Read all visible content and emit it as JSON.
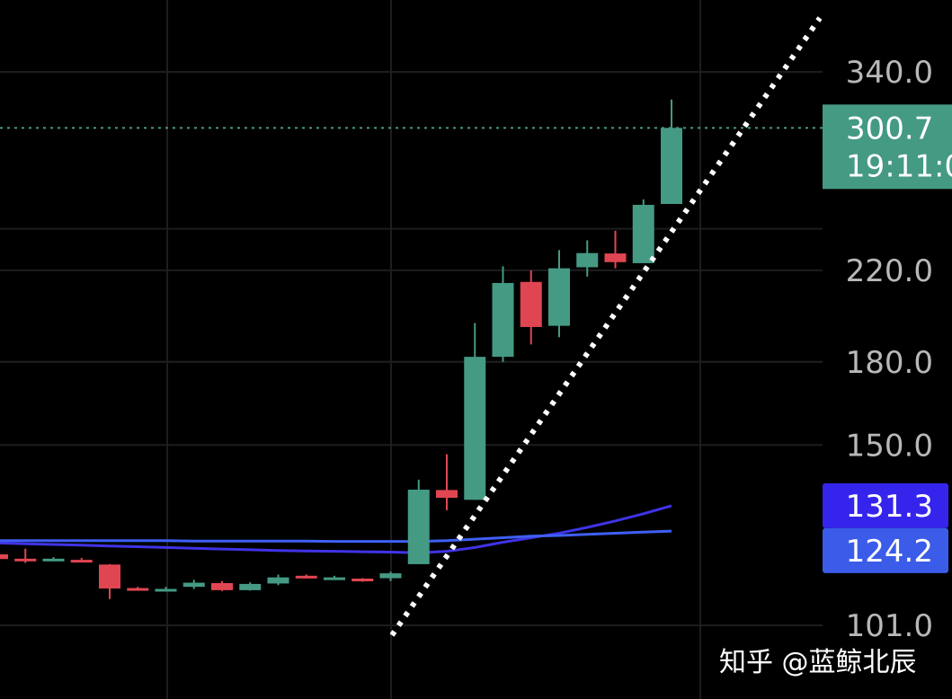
{
  "chart_data": {
    "type": "candlestick",
    "y_axis": {
      "scale": "log",
      "ticks": [
        "340.0",
        "220.0",
        "180.0",
        "150.0",
        "101.0"
      ]
    },
    "grid": true,
    "candles": [
      {
        "open": 118.0,
        "high": 119.5,
        "low": 116.5,
        "close": 116.8
      },
      {
        "open": 116.9,
        "high": 119.5,
        "low": 115.8,
        "close": 116.5
      },
      {
        "open": 116.7,
        "high": 117.3,
        "low": 116.2,
        "close": 116.9
      },
      {
        "open": 116.6,
        "high": 117.1,
        "low": 116.1,
        "close": 116.4
      },
      {
        "open": 115.4,
        "high": 115.5,
        "low": 107.0,
        "close": 109.5
      },
      {
        "open": 109.6,
        "high": 109.9,
        "low": 109.0,
        "close": 109.2
      },
      {
        "open": 109.1,
        "high": 109.9,
        "low": 108.8,
        "close": 109.4
      },
      {
        "open": 109.9,
        "high": 111.6,
        "low": 109.4,
        "close": 110.9
      },
      {
        "open": 110.8,
        "high": 111.3,
        "low": 108.9,
        "close": 109.1
      },
      {
        "open": 109.1,
        "high": 111.0,
        "low": 109.0,
        "close": 110.6
      },
      {
        "open": 110.7,
        "high": 112.9,
        "low": 110.3,
        "close": 112.2
      },
      {
        "open": 112.6,
        "high": 112.9,
        "low": 111.9,
        "close": 112.1
      },
      {
        "open": 112.0,
        "high": 112.6,
        "low": 111.6,
        "close": 112.2
      },
      {
        "open": 111.9,
        "high": 112.0,
        "low": 111.1,
        "close": 111.7
      },
      {
        "open": 112.0,
        "high": 113.6,
        "low": 111.3,
        "close": 113.2
      },
      {
        "open": 115.5,
        "high": 139.0,
        "low": 115.5,
        "close": 136.0
      },
      {
        "open": 135.9,
        "high": 147.0,
        "low": 130.0,
        "close": 133.6
      },
      {
        "open": 133.0,
        "high": 196.0,
        "low": 133.0,
        "close": 182.0
      },
      {
        "open": 182.0,
        "high": 222.0,
        "low": 180.0,
        "close": 214.0
      },
      {
        "open": 214.5,
        "high": 220.0,
        "low": 187.0,
        "close": 194.3
      },
      {
        "open": 194.8,
        "high": 230.0,
        "low": 190.0,
        "close": 221.0
      },
      {
        "open": 221.5,
        "high": 235.0,
        "low": 217.0,
        "close": 228.5
      },
      {
        "open": 228.3,
        "high": 240.0,
        "low": 221.0,
        "close": 224.0
      },
      {
        "open": 223.5,
        "high": 257.0,
        "low": 223.5,
        "close": 254.0
      },
      {
        "open": 254.5,
        "high": 320.0,
        "low": 254.5,
        "close": 300.7
      }
    ],
    "moving_averages": [
      {
        "color": "#3f33e6",
        "values": [
          121.0,
          120.8,
          120.6,
          120.4,
          120.2,
          120.0,
          119.8,
          119.6,
          119.4,
          119.2,
          119.0,
          118.9,
          118.8,
          118.7,
          118.6,
          118.4,
          118.8,
          119.8,
          121.2,
          122.4,
          123.6,
          125.2,
          127.0,
          129.0,
          131.3
        ]
      },
      {
        "color": "#3f5ff5",
        "values": [
          121.6,
          121.6,
          121.6,
          121.6,
          121.6,
          121.6,
          121.6,
          121.5,
          121.5,
          121.5,
          121.5,
          121.5,
          121.4,
          121.4,
          121.4,
          121.4,
          121.6,
          122.0,
          122.4,
          122.8,
          123.0,
          123.3,
          123.6,
          123.9,
          124.2
        ]
      }
    ],
    "last_price_badge": {
      "price": "300.7",
      "time": "19:11:0",
      "color": "#459a84"
    },
    "ma_badges": [
      {
        "label": "131.3",
        "color": "#3525ec"
      },
      {
        "label": "124.2",
        "color": "#3a5ce8"
      }
    ],
    "colors": {
      "up": "#459a84",
      "down": "#e04652",
      "background": "#000000",
      "grid": "#1d1d1d",
      "trend_line": "#ffffff"
    }
  },
  "watermark": "知乎 @蓝鲸北辰"
}
